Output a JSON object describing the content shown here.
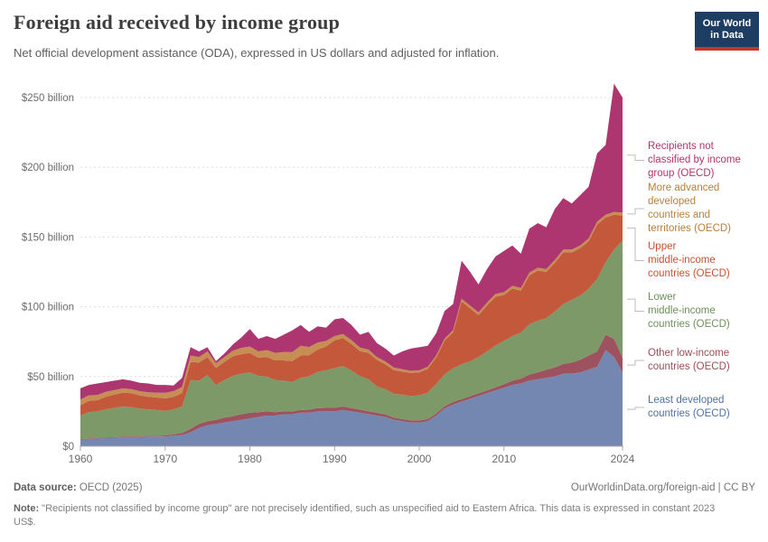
{
  "header": {
    "title": "Foreign aid received by income group",
    "subtitle": "Net official development assistance (ODA), expressed in US dollars and adjusted for inflation."
  },
  "logo": {
    "line1": "Our World",
    "line2": "in Data"
  },
  "colors": {
    "navy": "#1d3d63",
    "logo_red": "#c63528",
    "grid": "#dcdcdc",
    "axis": "#ababab",
    "tick_text": "#6b6b6b",
    "leader": "#bdbdbd"
  },
  "footer": {
    "source_label": "Data source:",
    "source_text": " OECD (2025)",
    "link_text": "OurWorldinData.org/foreign-aid | CC BY",
    "note_label": "Note:",
    "note_text": " \"Recipients not classified by income group\" are not precisely identified, such as unspecified aid to Eastern Africa. This data is expressed in constant 2023 US$."
  },
  "chart_data": {
    "type": "area",
    "stacked": true,
    "title": "Foreign aid received by income group",
    "ylabel": "",
    "xlabel": "",
    "ylim": [
      0,
      250
    ],
    "grid": "dashed-horizontal",
    "legend_position": "right",
    "unit": "US$ billion",
    "years": [
      1960,
      1961,
      1962,
      1963,
      1964,
      1965,
      1966,
      1967,
      1968,
      1969,
      1970,
      1971,
      1972,
      1973,
      1974,
      1975,
      1976,
      1977,
      1978,
      1979,
      1980,
      1981,
      1982,
      1983,
      1984,
      1985,
      1986,
      1987,
      1988,
      1989,
      1990,
      1991,
      1992,
      1993,
      1994,
      1995,
      1996,
      1997,
      1998,
      1999,
      2000,
      2001,
      2002,
      2003,
      2004,
      2005,
      2006,
      2007,
      2008,
      2009,
      2010,
      2011,
      2012,
      2013,
      2014,
      2015,
      2016,
      2017,
      2018,
      2019,
      2020,
      2021,
      2022,
      2023,
      2024
    ],
    "y_ticks": [
      {
        "value": 0,
        "label": "$0"
      },
      {
        "value": 50,
        "label": "$50 billion"
      },
      {
        "value": 100,
        "label": "$100 billion"
      },
      {
        "value": 150,
        "label": "$150 billion"
      },
      {
        "value": 200,
        "label": "$200 billion"
      },
      {
        "value": 250,
        "label": "$250 billion"
      }
    ],
    "x_ticks": [
      {
        "year": 1960,
        "label": "1960"
      },
      {
        "year": 1970,
        "label": "1970"
      },
      {
        "year": 1980,
        "label": "1980"
      },
      {
        "year": 1990,
        "label": "1990"
      },
      {
        "year": 2000,
        "label": "2000"
      },
      {
        "year": 2010,
        "label": "2010"
      },
      {
        "year": 2024,
        "label": "2024"
      }
    ],
    "series": [
      {
        "id": "least",
        "label": "Least developed countries (OECD)",
        "legend_lines": [
          "Least developed",
          "countries (OECD)"
        ],
        "color": "#7387b1",
        "text_color": "#4f72a5",
        "values": [
          4.5,
          5,
          5.5,
          6,
          6,
          6.5,
          6.5,
          6.5,
          7,
          7,
          7,
          7.5,
          8,
          10,
          13,
          15,
          16,
          17,
          18,
          19,
          20,
          21,
          22,
          22,
          23,
          23,
          24,
          24,
          25,
          25,
          25,
          26,
          25,
          24,
          23,
          22,
          21,
          19,
          18,
          17,
          17,
          18,
          22,
          27,
          30,
          32,
          34,
          36,
          38,
          40,
          42,
          44,
          45,
          47,
          48,
          49,
          50,
          52,
          52,
          53,
          55,
          57,
          69,
          64,
          53
        ]
      },
      {
        "id": "other_low",
        "label": "Other low-income countries (OECD)",
        "legend_lines": [
          "Other low-income",
          "countries (OECD)"
        ],
        "color": "#9e5260",
        "text_color": "#9a4e57",
        "values": [
          0.5,
          0.5,
          0.5,
          0.5,
          0.5,
          0.5,
          0.5,
          0.5,
          0.5,
          0.5,
          0.8,
          1,
          1.5,
          2.5,
          3,
          3,
          3,
          3.5,
          3.5,
          4,
          4,
          3.5,
          3,
          2.5,
          2,
          2,
          2,
          2.2,
          2.3,
          2.5,
          2.5,
          2.5,
          2.3,
          2.2,
          2,
          2,
          1.8,
          1.6,
          1.5,
          1.5,
          1.5,
          1.5,
          1.6,
          1.7,
          1.8,
          1.8,
          1.9,
          2,
          2,
          2.2,
          2.5,
          3,
          3.5,
          4.5,
          5,
          6,
          6.5,
          7,
          8,
          9,
          10,
          11,
          11,
          13,
          10.5
        ]
      },
      {
        "id": "lower",
        "label": "Lower middle-income countries (OECD)",
        "legend_lines": [
          "Lower",
          "middle-income",
          "countries (OECD)"
        ],
        "color": "#7e9968",
        "text_color": "#6e915a",
        "values": [
          17,
          19,
          19,
          20,
          21,
          21.5,
          21,
          20,
          19,
          18.5,
          17.5,
          18,
          19,
          35,
          31,
          33,
          25,
          27,
          29,
          29,
          29,
          26,
          25,
          23,
          22,
          21,
          23,
          24,
          26,
          27,
          28.5,
          29,
          27,
          24,
          23,
          19,
          18,
          17,
          17.5,
          17.5,
          18,
          19,
          21,
          23,
          24,
          25,
          25,
          26,
          28,
          30,
          31,
          32,
          33,
          36,
          37,
          37,
          40,
          43,
          45,
          46,
          48,
          52,
          52,
          64,
          84
        ]
      },
      {
        "id": "upper",
        "label": "Upper middle-income countries (OECD)",
        "legend_lines": [
          "Upper",
          "middle-income",
          "countries (OECD)"
        ],
        "color": "#c4583a",
        "text_color": "#c5542e",
        "values": [
          7.5,
          8,
          8,
          9,
          9.5,
          10,
          10,
          9.5,
          9,
          9,
          9,
          9,
          9.5,
          13,
          13,
          13,
          12,
          13,
          14,
          14,
          14,
          13,
          14,
          14,
          14.5,
          15,
          16,
          15,
          16,
          17,
          20,
          20,
          19,
          18,
          19,
          19,
          18,
          17,
          16.5,
          16.5,
          16.5,
          17,
          19,
          24,
          26,
          45,
          38,
          30,
          33,
          35,
          33,
          34,
          30,
          35,
          36,
          33,
          35,
          37,
          34,
          34,
          34,
          39,
          32,
          25,
          18
        ]
      },
      {
        "id": "advanced",
        "label": "More advanced developed countries and territories (OECD)",
        "legend_lines": [
          "More advanced",
          "developed",
          "countries and",
          "territories (OECD)"
        ],
        "color": "#c68e52",
        "text_color": "#b5803c",
        "values": [
          4,
          4,
          3.8,
          3.5,
          3.2,
          3,
          3,
          3,
          3.2,
          3.5,
          4,
          4,
          4.5,
          4.5,
          4,
          4,
          3.5,
          3.5,
          4,
          4.5,
          4.5,
          4.5,
          5,
          5.5,
          6,
          6.5,
          7,
          6,
          5,
          4,
          3,
          3,
          2.8,
          2.5,
          2.3,
          2,
          2,
          1.8,
          1.7,
          1.6,
          1.5,
          1.5,
          1.5,
          1.5,
          1.5,
          2,
          2,
          2,
          2,
          2,
          2,
          2,
          2,
          2,
          2,
          2,
          2,
          2,
          2,
          2,
          2,
          2,
          2,
          2,
          2
        ]
      },
      {
        "id": "unclassified",
        "label": "Recipients not classified by income group (OECD)",
        "legend_lines": [
          "Recipients not",
          "classified by income",
          "group (OECD)"
        ],
        "color": "#ad3570",
        "text_color": "#b0356e",
        "values": [
          8,
          7.5,
          8.2,
          7,
          6.8,
          6.5,
          6,
          6,
          6.3,
          5.5,
          5.7,
          4,
          6.5,
          6,
          4,
          3,
          1.5,
          2.5,
          4.5,
          7.5,
          12.5,
          9,
          10,
          10,
          12.5,
          15.5,
          15,
          10.8,
          11.7,
          9.5,
          12,
          11.5,
          10.9,
          9.3,
          12.7,
          10,
          9.2,
          8.6,
          12.8,
          15.9,
          16.5,
          15,
          15.9,
          19.8,
          18.7,
          27.2,
          24.1,
          20,
          24,
          26.8,
          29.5,
          29,
          24.5,
          31.5,
          32,
          30,
          36.5,
          37,
          33,
          36,
          37,
          49,
          50,
          92,
          82.5
        ]
      }
    ]
  }
}
